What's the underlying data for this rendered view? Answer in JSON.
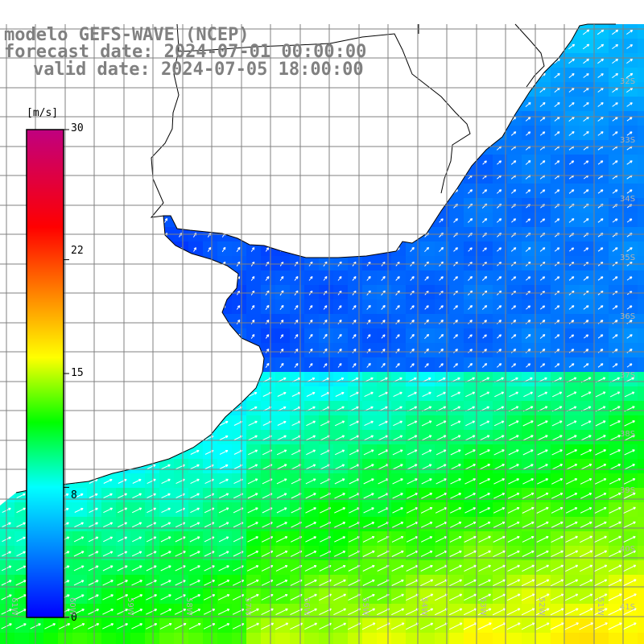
{
  "map": {
    "title_lines": [
      "modelo GEFS-WAVE (NCEP)",
      "forecast date: 2024-07-01 00:00:00",
      "valid date: 2024-07-05 18:00:00"
    ],
    "variable": "wind speed",
    "projection": "lat-lon",
    "grid": true,
    "land_color": "#ffffff",
    "coastline_color": "#000000",
    "gridline_color": "#808080",
    "vector_color": "#ffffff",
    "lat_labels": [
      "32S",
      "33S",
      "34S",
      "35S",
      "36S",
      "37S",
      "38S",
      "39S",
      "40S",
      "41S"
    ],
    "lon_labels": [
      "61W",
      "60W",
      "59W",
      "58W",
      "57W",
      "56W",
      "55W",
      "54W",
      "53W",
      "52W",
      "51W"
    ]
  },
  "colorbar": {
    "unit": "[m/s]",
    "ticks": [
      "30",
      "22",
      "15",
      "8",
      "0"
    ],
    "range": [
      0,
      30
    ],
    "colors": [
      "#0000ff",
      "#0080ff",
      "#00ffff",
      "#00ff00",
      "#ffff00",
      "#ff8000",
      "#ff0000",
      "#c00080"
    ]
  }
}
